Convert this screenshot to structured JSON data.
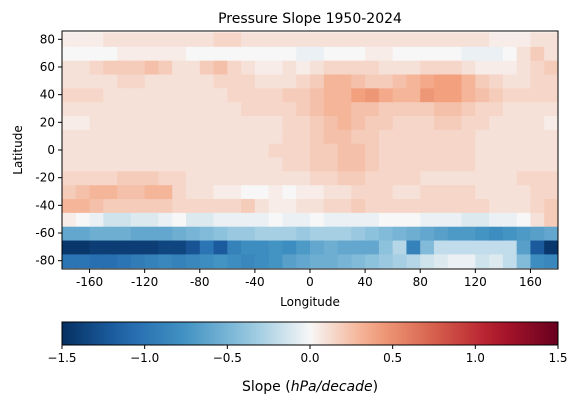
{
  "chart_data": [
    {
      "type": "heatmap",
      "title": "Pressure Slope 1950-2024",
      "xlabel": "Longitude",
      "ylabel": "Latitude",
      "xlim": [
        -180,
        180
      ],
      "ylim": [
        -86,
        86
      ],
      "xticks": [
        -160,
        -120,
        -80,
        -40,
        0,
        40,
        80,
        120,
        160
      ],
      "yticks": [
        -80,
        -60,
        -40,
        -20,
        0,
        20,
        40,
        60,
        80
      ],
      "x_centers": [
        -175,
        -165,
        -155,
        -145,
        -135,
        -125,
        -115,
        -105,
        -95,
        -85,
        -75,
        -65,
        -55,
        -45,
        -35,
        -25,
        -15,
        -5,
        5,
        15,
        25,
        35,
        45,
        55,
        65,
        75,
        85,
        95,
        105,
        115,
        125,
        135,
        145,
        155,
        165,
        175
      ],
      "y_centers": [
        -80,
        -70,
        -60,
        -50,
        -40,
        -30,
        -20,
        -10,
        0,
        10,
        20,
        30,
        40,
        50,
        60,
        70,
        80
      ],
      "cell_width": 10,
      "cell_height": 10,
      "grid": false,
      "colormap": "RdBu_r",
      "vmin": -1.5,
      "vmax": 1.5,
      "rows": [
        [
          -1.0,
          -1.0,
          -1.05,
          -1.05,
          -1.0,
          -0.95,
          -0.9,
          -0.85,
          -0.9,
          -0.85,
          -0.8,
          -0.75,
          -0.8,
          -0.85,
          -0.8,
          -0.75,
          -0.65,
          -0.6,
          -0.55,
          -0.55,
          -0.5,
          -0.45,
          -0.4,
          -0.35,
          -0.3,
          -0.25,
          -0.15,
          -0.1,
          -0.05,
          -0.05,
          -0.15,
          -0.1,
          -0.2,
          -0.45,
          -0.8,
          -0.85
        ],
        [
          -1.45,
          -1.45,
          -1.4,
          -1.4,
          -1.4,
          -1.4,
          -1.4,
          -1.35,
          -1.35,
          -1.25,
          -1.0,
          -1.2,
          -0.9,
          -0.8,
          -0.8,
          -0.75,
          -0.8,
          -0.7,
          -0.6,
          -0.55,
          -0.6,
          -0.6,
          -0.6,
          -0.4,
          -0.25,
          -0.9,
          -0.45,
          -0.2,
          -0.2,
          -0.2,
          -0.2,
          -0.2,
          -0.2,
          -0.65,
          -1.2,
          -1.45
        ],
        [
          -0.6,
          -0.6,
          -0.55,
          -0.55,
          -0.55,
          -0.6,
          -0.6,
          -0.6,
          -0.55,
          -0.5,
          -0.45,
          -0.4,
          -0.35,
          -0.35,
          -0.3,
          -0.3,
          -0.3,
          -0.35,
          -0.3,
          -0.3,
          -0.3,
          -0.35,
          -0.4,
          -0.45,
          -0.5,
          -0.55,
          -0.6,
          -0.65,
          -0.7,
          -0.7,
          -0.75,
          -0.8,
          -0.75,
          -0.7,
          -0.65,
          -0.6
        ],
        [
          0.05,
          0.0,
          -0.05,
          -0.15,
          -0.15,
          -0.1,
          -0.1,
          -0.05,
          0.0,
          -0.1,
          -0.1,
          -0.05,
          -0.05,
          -0.05,
          -0.05,
          0.0,
          -0.05,
          -0.05,
          0.0,
          -0.05,
          -0.05,
          -0.05,
          -0.05,
          0.0,
          0.0,
          0.0,
          -0.05,
          -0.05,
          -0.05,
          -0.1,
          -0.1,
          -0.05,
          -0.05,
          0.0,
          0.1,
          0.2
        ],
        [
          0.3,
          0.3,
          0.25,
          0.2,
          0.2,
          0.2,
          0.2,
          0.2,
          0.15,
          0.15,
          0.15,
          0.15,
          0.15,
          0.2,
          0.1,
          0.05,
          0.05,
          0.1,
          0.1,
          0.15,
          0.15,
          0.2,
          0.15,
          0.15,
          0.15,
          0.15,
          0.15,
          0.15,
          0.15,
          0.15,
          0.15,
          0.1,
          0.1,
          0.1,
          0.15,
          0.2
        ],
        [
          0.2,
          0.25,
          0.3,
          0.3,
          0.25,
          0.25,
          0.3,
          0.3,
          0.15,
          0.1,
          0.1,
          0.05,
          0.05,
          0.0,
          0.0,
          0.05,
          0.0,
          0.05,
          0.05,
          0.1,
          0.1,
          0.15,
          0.15,
          0.15,
          0.1,
          0.1,
          0.15,
          0.15,
          0.15,
          0.15,
          0.1,
          0.1,
          0.1,
          0.1,
          0.15,
          0.15
        ],
        [
          0.15,
          0.15,
          0.15,
          0.15,
          0.2,
          0.2,
          0.2,
          0.15,
          0.15,
          0.1,
          0.1,
          0.1,
          0.1,
          0.1,
          0.1,
          0.1,
          0.1,
          0.1,
          0.15,
          0.15,
          0.2,
          0.2,
          0.15,
          0.15,
          0.15,
          0.15,
          0.1,
          0.1,
          0.1,
          0.1,
          0.1,
          0.1,
          0.1,
          0.15,
          0.15,
          0.15
        ],
        [
          0.1,
          0.1,
          0.1,
          0.1,
          0.1,
          0.1,
          0.1,
          0.1,
          0.1,
          0.1,
          0.1,
          0.1,
          0.1,
          0.1,
          0.1,
          0.1,
          0.15,
          0.15,
          0.2,
          0.2,
          0.25,
          0.25,
          0.2,
          0.15,
          0.15,
          0.15,
          0.15,
          0.15,
          0.15,
          0.15,
          0.1,
          0.1,
          0.1,
          0.1,
          0.1,
          0.1
        ],
        [
          0.1,
          0.1,
          0.1,
          0.1,
          0.1,
          0.1,
          0.1,
          0.1,
          0.1,
          0.1,
          0.1,
          0.1,
          0.1,
          0.1,
          0.1,
          0.15,
          0.15,
          0.15,
          0.2,
          0.2,
          0.25,
          0.25,
          0.2,
          0.15,
          0.15,
          0.15,
          0.15,
          0.15,
          0.15,
          0.15,
          0.1,
          0.1,
          0.1,
          0.1,
          0.1,
          0.1
        ],
        [
          0.1,
          0.1,
          0.1,
          0.1,
          0.1,
          0.1,
          0.1,
          0.1,
          0.1,
          0.1,
          0.1,
          0.1,
          0.1,
          0.1,
          0.1,
          0.1,
          0.15,
          0.15,
          0.2,
          0.25,
          0.25,
          0.2,
          0.2,
          0.15,
          0.15,
          0.15,
          0.15,
          0.15,
          0.15,
          0.15,
          0.1,
          0.1,
          0.1,
          0.1,
          0.1,
          0.1
        ],
        [
          0.05,
          0.05,
          0.1,
          0.1,
          0.1,
          0.1,
          0.1,
          0.1,
          0.1,
          0.1,
          0.1,
          0.1,
          0.1,
          0.1,
          0.1,
          0.1,
          0.15,
          0.15,
          0.2,
          0.25,
          0.3,
          0.25,
          0.2,
          0.2,
          0.15,
          0.15,
          0.15,
          0.2,
          0.2,
          0.15,
          0.15,
          0.1,
          0.1,
          0.1,
          0.1,
          0.05
        ],
        [
          0.1,
          0.1,
          0.1,
          0.1,
          0.1,
          0.1,
          0.1,
          0.1,
          0.1,
          0.1,
          0.1,
          0.1,
          0.1,
          0.15,
          0.15,
          0.15,
          0.15,
          0.2,
          0.25,
          0.3,
          0.3,
          0.25,
          0.25,
          0.2,
          0.2,
          0.2,
          0.2,
          0.25,
          0.25,
          0.2,
          0.15,
          0.15,
          0.1,
          0.1,
          0.1,
          0.1
        ],
        [
          0.15,
          0.15,
          0.15,
          0.1,
          0.1,
          0.1,
          0.1,
          0.1,
          0.1,
          0.1,
          0.1,
          0.1,
          0.15,
          0.15,
          0.15,
          0.15,
          0.2,
          0.2,
          0.25,
          0.3,
          0.3,
          0.4,
          0.45,
          0.35,
          0.3,
          0.3,
          0.45,
          0.4,
          0.4,
          0.3,
          0.25,
          0.2,
          0.15,
          0.15,
          0.15,
          0.15
        ],
        [
          0.1,
          0.1,
          0.1,
          0.1,
          0.15,
          0.15,
          0.1,
          0.1,
          0.1,
          0.1,
          0.1,
          0.15,
          0.15,
          0.15,
          0.1,
          0.1,
          0.1,
          0.15,
          0.2,
          0.3,
          0.3,
          0.25,
          0.2,
          0.2,
          0.25,
          0.3,
          0.35,
          0.4,
          0.4,
          0.3,
          0.2,
          0.15,
          0.1,
          0.1,
          0.15,
          0.15
        ],
        [
          0.1,
          0.1,
          0.15,
          0.2,
          0.2,
          0.2,
          0.25,
          0.2,
          0.1,
          0.1,
          0.2,
          0.25,
          0.15,
          0.1,
          0.05,
          0.05,
          0.1,
          0.05,
          0.1,
          0.15,
          0.15,
          0.15,
          0.15,
          0.1,
          0.1,
          0.1,
          0.15,
          0.15,
          0.15,
          0.1,
          0.05,
          0.05,
          0.05,
          0.1,
          0.15,
          0.2
        ],
        [
          0.0,
          0.0,
          0.0,
          0.0,
          0.05,
          0.05,
          0.05,
          0.05,
          0.05,
          0.0,
          0.0,
          0.0,
          0.0,
          0.0,
          0.0,
          0.0,
          0.0,
          -0.05,
          -0.05,
          0.0,
          0.0,
          0.0,
          0.05,
          0.05,
          0.0,
          0.0,
          0.0,
          0.0,
          0.0,
          -0.05,
          -0.05,
          -0.05,
          0.0,
          0.1,
          0.2,
          0.1
        ],
        [
          0.05,
          0.05,
          0.05,
          0.1,
          0.1,
          0.1,
          0.1,
          0.1,
          0.1,
          0.1,
          0.1,
          0.15,
          0.15,
          0.1,
          0.1,
          0.1,
          0.1,
          0.1,
          0.1,
          0.1,
          0.1,
          0.1,
          0.1,
          0.1,
          0.1,
          0.1,
          0.1,
          0.1,
          0.1,
          0.1,
          0.1,
          0.05,
          0.05,
          0.05,
          0.1,
          0.1
        ]
      ],
      "colorbar": {
        "label_prefix": "Slope (",
        "label_italic": "hPa/decade",
        "label_suffix": ")",
        "ticks": [
          -1.5,
          -1.0,
          -0.5,
          0.0,
          0.5,
          1.0,
          1.5
        ],
        "tick_labels": [
          "−1.5",
          "−1.0",
          "−0.5",
          "0.0",
          "0.5",
          "1.0",
          "1.5"
        ]
      }
    }
  ]
}
